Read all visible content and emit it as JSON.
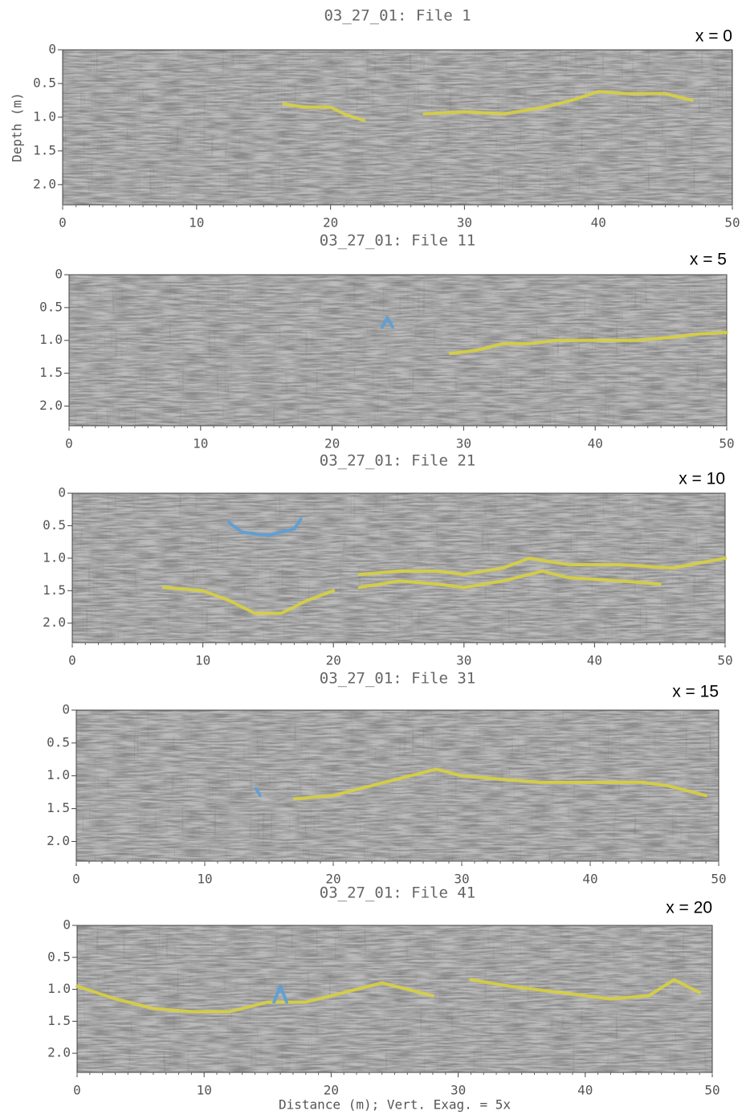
{
  "chart_data": [
    {
      "type": "line",
      "title": "03_27_01: File 1",
      "annotation": "x = 0",
      "ylabel": "Depth (m)",
      "y_inverted": true,
      "xlim": [
        0,
        50
      ],
      "ylim": [
        0,
        2.3
      ],
      "xticks": [
        0,
        10,
        20,
        30,
        40,
        50
      ],
      "yticks": [
        0,
        0.5,
        {
          "value": 1,
          "label": "1.0"
        },
        1.5,
        {
          "value": 2,
          "label": "2.0"
        }
      ],
      "series": [
        {
          "color": "#d8d040",
          "x": [
            16.5,
            18,
            20,
            21,
            22.5,
            25,
            27,
            30,
            33,
            36,
            38,
            40,
            42,
            45,
            47
          ],
          "values": [
            0.8,
            0.85,
            0.85,
            0.95,
            1.05,
            null,
            0.95,
            0.92,
            0.95,
            0.85,
            0.75,
            0.62,
            0.65,
            0.65,
            0.75
          ]
        }
      ]
    },
    {
      "type": "line",
      "title": "03_27_01: File 11",
      "annotation": "x = 5",
      "y_inverted": true,
      "xlim": [
        0,
        50
      ],
      "ylim": [
        0,
        2.3
      ],
      "xticks": [
        0,
        10,
        20,
        30,
        40,
        50
      ],
      "yticks": [
        0,
        0.5,
        {
          "value": 1,
          "label": "1.0"
        },
        1.5,
        {
          "value": 2,
          "label": "2.0"
        }
      ],
      "series": [
        {
          "color": "#d8d040",
          "x": [
            29,
            31,
            33,
            35,
            37,
            40,
            43,
            46,
            48,
            50
          ],
          "values": [
            1.2,
            1.15,
            1.05,
            1.05,
            1.0,
            1.0,
            1.0,
            0.95,
            0.9,
            0.88
          ]
        },
        {
          "color": "#5a9fd8",
          "x": [
            23.8,
            24.2,
            24.6
          ],
          "values": [
            0.8,
            0.65,
            0.8
          ]
        }
      ]
    },
    {
      "type": "line",
      "title": "03_27_01: File 21",
      "annotation": "x = 10",
      "y_inverted": true,
      "xlim": [
        0,
        50
      ],
      "ylim": [
        0,
        2.3
      ],
      "xticks": [
        0,
        10,
        20,
        30,
        40,
        50
      ],
      "yticks": [
        0,
        0.5,
        {
          "value": 1,
          "label": "1.0"
        },
        1.5,
        {
          "value": 2,
          "label": "2.0"
        }
      ],
      "series": [
        {
          "color": "#d8d040",
          "x": [
            7,
            10,
            12,
            14,
            16,
            18,
            20
          ],
          "values": [
            1.45,
            1.5,
            1.65,
            1.85,
            1.85,
            1.65,
            1.5
          ]
        },
        {
          "color": "#d8d040",
          "x": [
            22,
            25,
            28,
            30,
            33,
            35,
            38,
            42,
            46,
            50
          ],
          "values": [
            1.25,
            1.2,
            1.2,
            1.25,
            1.15,
            1.0,
            1.1,
            1.1,
            1.15,
            1.0
          ]
        },
        {
          "color": "#d8d040",
          "x": [
            22,
            25,
            28,
            30,
            33,
            36,
            38,
            42,
            45
          ],
          "values": [
            1.45,
            1.35,
            1.4,
            1.45,
            1.35,
            1.2,
            1.3,
            1.35,
            1.4
          ]
        },
        {
          "color": "#5a9fd8",
          "x": [
            12,
            13,
            15,
            17,
            17.5
          ],
          "values": [
            0.45,
            0.6,
            0.65,
            0.55,
            0.4
          ]
        }
      ]
    },
    {
      "type": "line",
      "title": "03_27_01: File 31",
      "annotation": "x = 15",
      "y_inverted": true,
      "xlim": [
        0,
        50
      ],
      "ylim": [
        0,
        2.3
      ],
      "xticks": [
        0,
        10,
        20,
        30,
        40,
        50
      ],
      "yticks": [
        0,
        0.5,
        {
          "value": 1,
          "label": "1.0"
        },
        1.5,
        {
          "value": 2,
          "label": "2.0"
        }
      ],
      "series": [
        {
          "color": "#d8d040",
          "x": [
            17,
            20,
            22,
            25,
            28,
            30,
            33,
            36,
            40,
            44,
            46,
            48,
            49
          ],
          "values": [
            1.35,
            1.3,
            1.2,
            1.05,
            0.9,
            1.0,
            1.05,
            1.1,
            1.1,
            1.1,
            1.15,
            1.25,
            1.3
          ]
        },
        {
          "color": "#5a9fd8",
          "x": [
            14,
            14.3
          ],
          "values": [
            1.2,
            1.3
          ]
        }
      ]
    },
    {
      "type": "line",
      "title": "03_27_01: File 41",
      "annotation": "x = 20",
      "xlabel": "Distance (m); Vert. Exag. = 5x",
      "y_inverted": true,
      "xlim": [
        0,
        50
      ],
      "ylim": [
        0,
        2.3
      ],
      "xticks": [
        0,
        10,
        20,
        30,
        40,
        50
      ],
      "yticks": [
        0,
        0.5,
        {
          "value": 1,
          "label": "1.0"
        },
        1.5,
        {
          "value": 2,
          "label": "2.0"
        }
      ],
      "series": [
        {
          "color": "#d8d040",
          "x": [
            0,
            3,
            6,
            9,
            12,
            15,
            18,
            21,
            24,
            27,
            28,
            30,
            31,
            34,
            38,
            42,
            45,
            47,
            49
          ],
          "values": [
            0.95,
            1.15,
            1.3,
            1.35,
            1.35,
            1.2,
            1.2,
            1.05,
            0.9,
            1.05,
            1.1,
            null,
            0.85,
            0.95,
            1.05,
            1.15,
            1.1,
            0.85,
            1.05
          ]
        },
        {
          "color": "#5a9fd8",
          "x": [
            15.5,
            16,
            16.5
          ],
          "values": [
            1.2,
            0.95,
            1.2
          ]
        }
      ]
    }
  ]
}
